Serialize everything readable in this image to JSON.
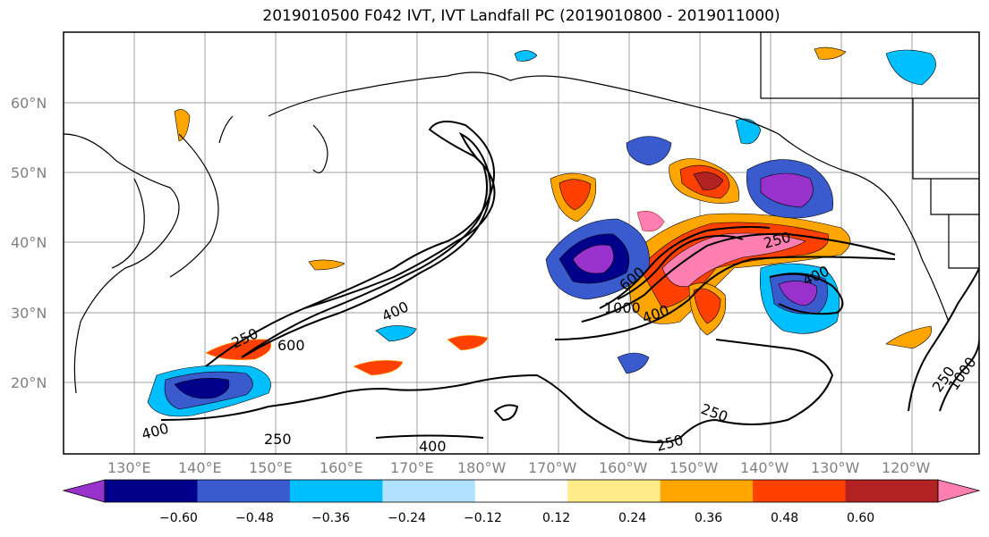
{
  "title": "2019010500 F042 IVT, IVT Landfall PC (2019010800 - 2019011000)",
  "lat_labels": [
    "60°N",
    "50°N",
    "40°N",
    "30°N",
    "20°N"
  ],
  "lon_labels": [
    "130°E",
    "140°E",
    "150°E",
    "160°E",
    "170°E",
    "180°W",
    "170°W",
    "160°W",
    "150°W",
    "140°W",
    "130°W",
    "120°W"
  ],
  "contour_labels": [
    "250",
    "600",
    "400",
    "1000",
    "400",
    "250",
    "400",
    "250",
    "250",
    "400",
    "250",
    "400",
    "250",
    "600",
    "1000"
  ],
  "colorbar": {
    "colors": [
      "#9932cc",
      "#00008b",
      "#3a5bcd",
      "#00bfff",
      "#b0e2ff",
      "#ffffff",
      "#ffeb8a",
      "#ffa500",
      "#ff4000",
      "#b22222",
      "#ff80b0"
    ],
    "ticks": [
      "−0.60",
      "−0.48",
      "−0.36",
      "−0.24",
      "−0.12",
      "0.12",
      "0.24",
      "0.36",
      "0.48",
      "0.60"
    ]
  }
}
